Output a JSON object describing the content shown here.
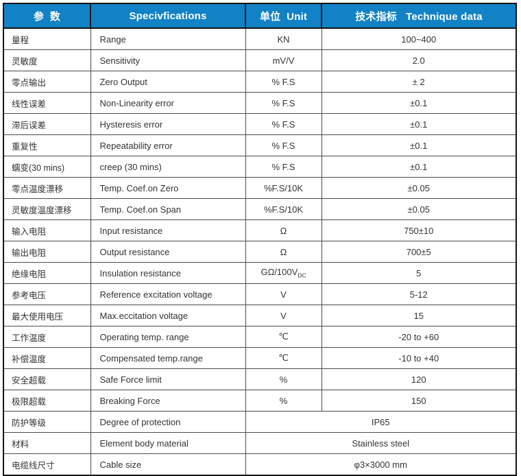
{
  "colors": {
    "header_bg": "#1182c6",
    "header_text": "#ffffff",
    "outer_border": "#141414",
    "grid_border": "#4a4a4a",
    "body_text": "#333333"
  },
  "table": {
    "headers": [
      "参  数",
      "Specivfications",
      "单位  Unit",
      "技术指标   Technique data"
    ],
    "rows": [
      {
        "cn": "量程",
        "en": "Range",
        "unit": "KN",
        "value": "100~400"
      },
      {
        "cn": "灵敏度",
        "en": "Sensitivity",
        "unit": "mV/V",
        "value": "2.0"
      },
      {
        "cn": "零点输出",
        "en": "Zero Output",
        "unit": "% F.S",
        "value": "± 2"
      },
      {
        "cn": "线性误差",
        "en": "Non-Linearity error",
        "unit": "% F.S",
        "value": "±0.1"
      },
      {
        "cn": "滞后误差",
        "en": "Hysteresis error",
        "unit": "% F.S",
        "value": "±0.1"
      },
      {
        "cn": "重复性",
        "en": "Repeatability error",
        "unit": "% F.S",
        "value": "±0.1"
      },
      {
        "cn": "蠕变(30 mins)",
        "en": "creep (30 mins)",
        "unit": "% F.S",
        "value": "±0.1"
      },
      {
        "cn": "零点温度漂移",
        "en": "Temp. Coef.on Zero",
        "unit": "%F.S/10K",
        "value": "±0.05"
      },
      {
        "cn": "灵敏度温度漂移",
        "en": "Temp. Coef.on Span",
        "unit": "%F.S/10K",
        "value": "±0.05"
      },
      {
        "cn": "输入电阻",
        "en": "Input resistance",
        "unit": "Ω",
        "value": "750±10"
      },
      {
        "cn": "输出电阻",
        "en": "Output resistance",
        "unit": "Ω",
        "value": "700±5"
      },
      {
        "cn": "绝缘电阻",
        "en": "Insulation resistance",
        "unit": "GΩ/100V",
        "unit_sub": "DC",
        "value": "5"
      },
      {
        "cn": "参考电压",
        "en": "Reference excitation voltage",
        "unit": "V",
        "value": "5-12"
      },
      {
        "cn": "最大使用电压",
        "en": "Max.eccitation voltage",
        "unit": "V",
        "value": "15"
      },
      {
        "cn": "工作温度",
        "en": "Operating temp. range",
        "unit": "℃",
        "value": "-20 to +60"
      },
      {
        "cn": "补偿温度",
        "en": "Compensated temp.range",
        "unit": "℃",
        "value": "-10 to +40"
      },
      {
        "cn": "安全超载",
        "en": "Safe Force limit",
        "unit": "%",
        "value": "120"
      },
      {
        "cn": "极限超载",
        "en": "Breaking Force",
        "unit": "%",
        "value": "150"
      },
      {
        "cn": "防护等级",
        "en": "Degree of protection",
        "unit": null,
        "value": "IP65"
      },
      {
        "cn": "材料",
        "en": "Element body material",
        "unit": null,
        "value": "Stainless steel"
      },
      {
        "cn": "电缆线尺寸",
        "en": "Cable size",
        "unit": null,
        "value": "φ3×3000 mm"
      }
    ]
  }
}
